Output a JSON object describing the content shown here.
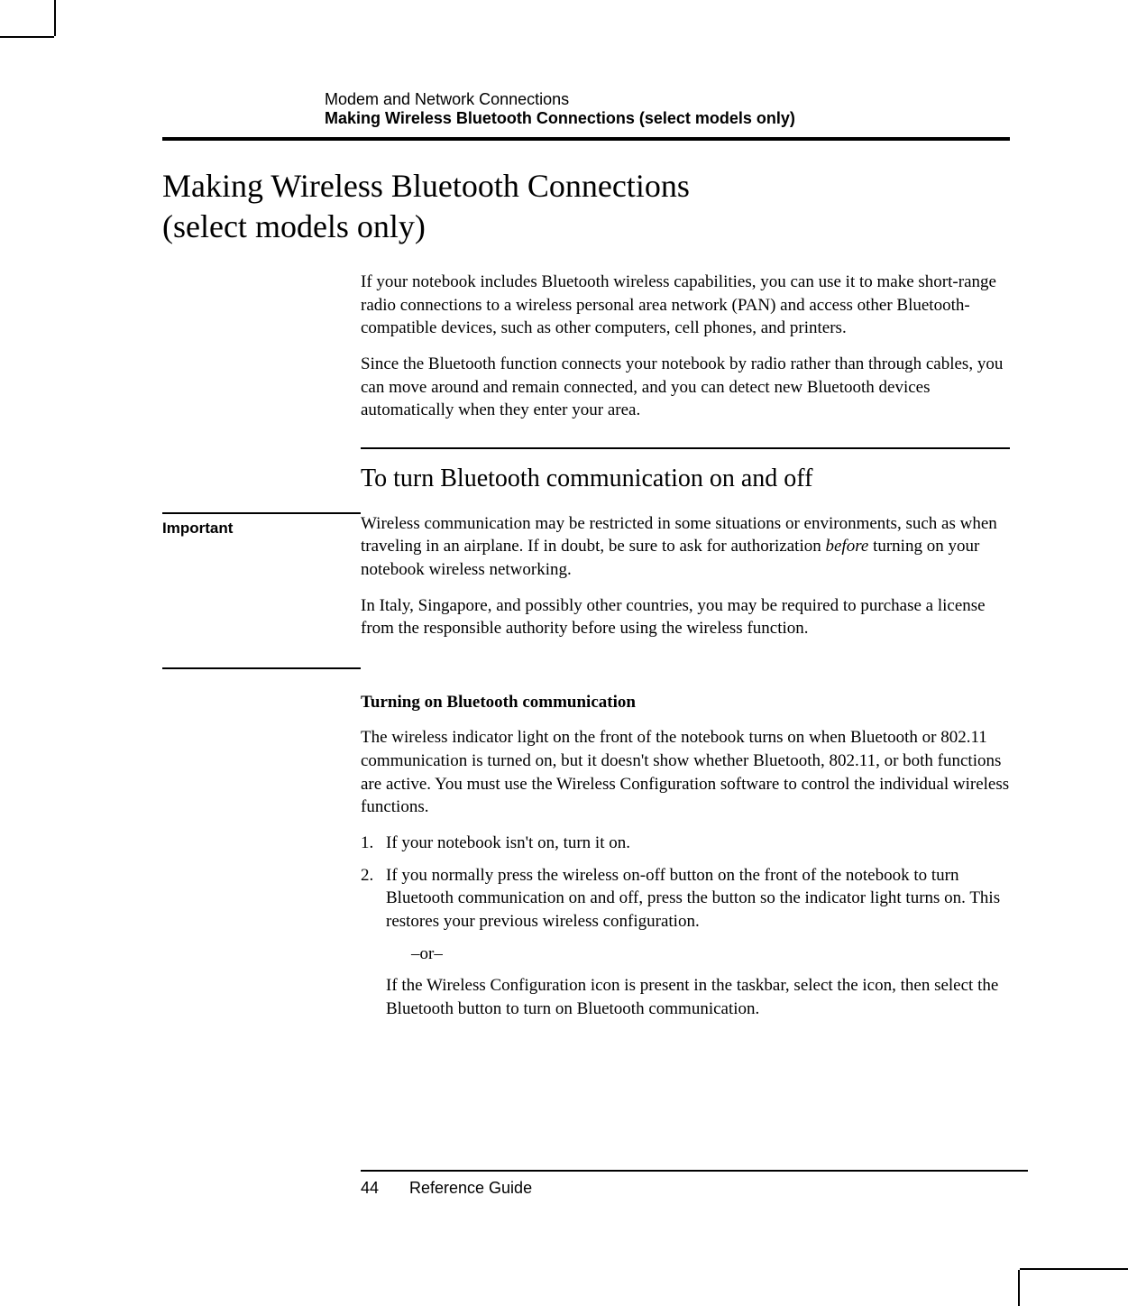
{
  "header": {
    "chapter": "Modem and Network Connections",
    "section": "Making Wireless Bluetooth Connections (select models only)"
  },
  "title_line1": "Making Wireless Bluetooth Connections",
  "title_line2": "(select models only)",
  "intro": {
    "p1": "If your notebook includes Bluetooth wireless capabilities, you can use it to make short-range radio connections to a wireless personal area network (PAN) and access other Bluetooth-compatible devices, such as other computers, cell phones, and printers.",
    "p2": "Since the Bluetooth function connects your notebook by radio rather than through cables, you can move around and remain connected, and you can detect new Bluetooth devices automatically when they enter your area."
  },
  "subheading": "To turn Bluetooth communication on and off",
  "important": {
    "label": "Important",
    "p1a": "Wireless communication may be restricted in some situations or environments, such as when traveling in an airplane. If in doubt, be sure to ask for authorization ",
    "p1_before": "before",
    "p1b": " turning on your notebook wireless networking.",
    "p2": "In Italy, Singapore, and possibly other countries, you may be required to purchase a license from the responsible authority before using the wireless function."
  },
  "turning_on": {
    "heading": "Turning on Bluetooth communication",
    "p1": "The wireless indicator light on the front of the notebook turns on when Bluetooth or 802.11 communication is turned on, but it doesn't show whether Bluetooth, 802.11, or both functions are active. You must use the Wireless Configuration software to control the individual wireless functions.",
    "step1_num": "1.",
    "step1": "If your notebook isn't on, turn it on.",
    "step2_num": "2.",
    "step2": "If you normally press the wireless on-off button on the front of the notebook to turn Bluetooth communication on and off, press the button so the indicator light turns on. This restores your previous wireless configuration.",
    "or": "–or–",
    "step2b": "If the Wireless Configuration icon is present in the taskbar, select the icon, then select the Bluetooth button to turn on Bluetooth communication."
  },
  "footer": {
    "page": "44",
    "label": "Reference Guide"
  },
  "colors": {
    "text": "#000000",
    "background": "#ffffff"
  },
  "fonts": {
    "serif": "Times New Roman",
    "sans": "Arial"
  }
}
